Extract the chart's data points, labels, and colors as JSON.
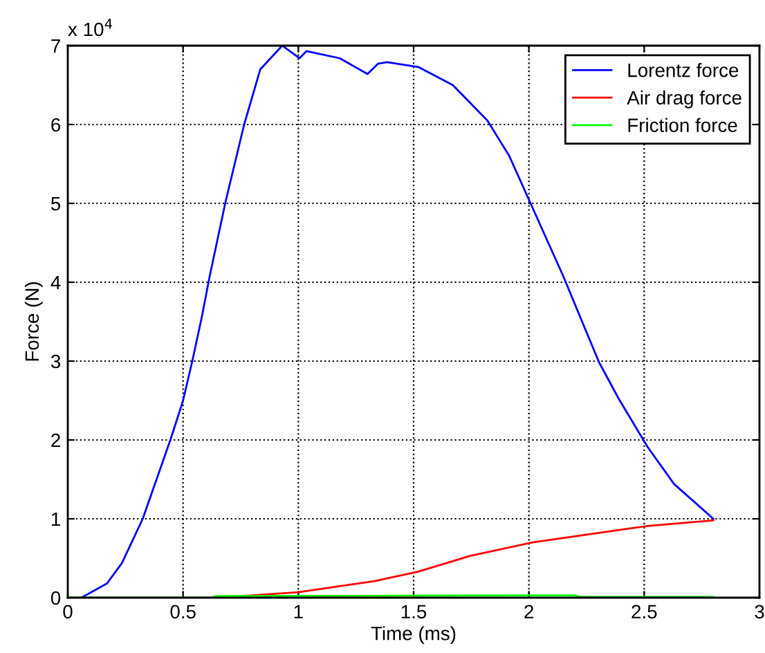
{
  "chart_data": {
    "type": "line",
    "xlabel": "Time (ms)",
    "ylabel": "Force (N)",
    "annotations": [
      "x 10$^{4}$"
    ],
    "xlim": [
      0,
      3
    ],
    "xticks": [
      0,
      0.5,
      1,
      1.5,
      2,
      2.5,
      3
    ],
    "ylim": [
      0,
      7
    ],
    "yticks": [
      0,
      1,
      2,
      3,
      4,
      5,
      6,
      7
    ],
    "grid": true,
    "legend": "top right",
    "line_style": "solid",
    "marker": "none",
    "series": [
      {
        "name": "Lorentz force",
        "color": "#0000ff",
        "x": [
          0.05,
          0.065,
          0.17,
          0.235,
          0.325,
          0.445,
          0.5,
          0.54,
          0.58,
          0.615,
          0.685,
          0.765,
          0.835,
          0.93,
          1.005,
          1.035,
          1.18,
          1.3,
          1.345,
          1.385,
          1.52,
          1.67,
          1.82,
          1.915,
          2.015,
          2.15,
          2.245,
          2.305,
          2.39,
          2.515,
          2.63,
          2.8
        ],
        "values": [
          0,
          0.01,
          0.18,
          0.44,
          1.0,
          2.0,
          2.5,
          3.0,
          3.54,
          4.07,
          5.03,
          6.0,
          6.7,
          7.0,
          6.84,
          6.93,
          6.84,
          6.64,
          6.77,
          6.79,
          6.73,
          6.5,
          6.05,
          5.6,
          4.95,
          4.07,
          3.4,
          2.98,
          2.52,
          1.91,
          1.44,
          1.0
        ]
      },
      {
        "name": "Air drag force",
        "color": "#ff0000",
        "x": [
          0.65,
          0.8,
          1.0,
          1.33,
          1.52,
          1.745,
          2.015,
          2.515,
          2.8
        ],
        "values": [
          0,
          0.03,
          0.07,
          0.21,
          0.33,
          0.53,
          0.7,
          0.91,
          0.98
        ]
      },
      {
        "name": "Friction force",
        "color": "#00ff00",
        "x": [
          0,
          0.63,
          0.64,
          2.2,
          2.22,
          2.8
        ],
        "values": [
          0,
          0,
          0.02,
          0.03,
          0.01,
          0.01
        ]
      }
    ]
  }
}
